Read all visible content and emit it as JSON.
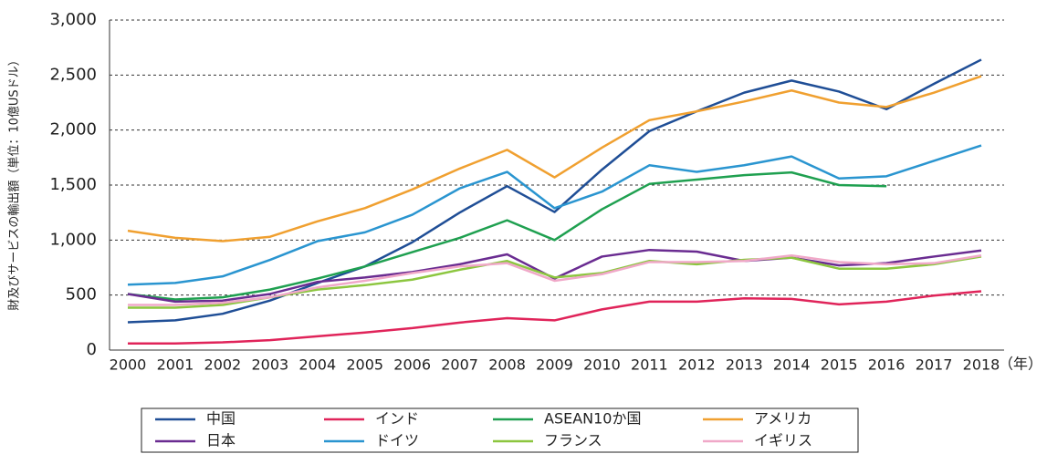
{
  "chart_data": {
    "type": "line",
    "ylabel": "財及びサービスの輸出額（単位：10億USドル）",
    "xlabel": "（年）",
    "categories": [
      "2000",
      "2001",
      "2002",
      "2003",
      "2004",
      "2005",
      "2006",
      "2007",
      "2008",
      "2009",
      "2010",
      "2011",
      "2012",
      "2013",
      "2014",
      "2015",
      "2016",
      "2017",
      "2018"
    ],
    "ylim": [
      0,
      3000
    ],
    "yticks": [
      0,
      500,
      {
        "value": 1000,
        "label": "1,000"
      },
      {
        "value": 1500,
        "label": "1,500"
      },
      {
        "value": 2000,
        "label": "2,000"
      },
      {
        "value": 2500,
        "label": "2,500"
      },
      {
        "value": 3000,
        "label": "3,000"
      }
    ],
    "grid": true,
    "legend": "bottom",
    "series": [
      {
        "name": "中国",
        "color": "#1f4e96",
        "values": [
          253,
          270,
          330,
          450,
          610,
          760,
          980,
          1250,
          1490,
          1255,
          1640,
          1990,
          2170,
          2340,
          2450,
          2350,
          2190,
          2420,
          2640
        ]
      },
      {
        "name": "インド",
        "color": "#e0245a",
        "values": [
          60,
          60,
          70,
          90,
          125,
          160,
          200,
          250,
          290,
          270,
          370,
          440,
          440,
          470,
          465,
          415,
          440,
          495,
          535
        ]
      },
      {
        "name": "ASEAN10か国",
        "color": "#1fa050",
        "values": [
          510,
          460,
          480,
          550,
          650,
          760,
          890,
          1020,
          1180,
          1000,
          1280,
          1510,
          1550,
          1590,
          1615,
          1500,
          1490,
          null,
          null
        ]
      },
      {
        "name": "アメリカ",
        "color": "#f0a030",
        "values": [
          1085,
          1020,
          990,
          1030,
          1170,
          1290,
          1460,
          1650,
          1820,
          1570,
          1840,
          2090,
          2170,
          2260,
          2360,
          2250,
          2210,
          2340,
          2490
        ]
      },
      {
        "name": "日本",
        "color": "#6a2c91",
        "values": [
          510,
          440,
          450,
          510,
          620,
          660,
          710,
          780,
          870,
          650,
          850,
          910,
          895,
          810,
          840,
          770,
          790,
          850,
          905
        ]
      },
      {
        "name": "ドイツ",
        "color": "#2a95d0",
        "values": [
          595,
          610,
          670,
          820,
          990,
          1070,
          1230,
          1470,
          1620,
          1290,
          1440,
          1680,
          1620,
          1680,
          1760,
          1560,
          1580,
          1720,
          1860
        ]
      },
      {
        "name": "フランス",
        "color": "#8cc63f",
        "values": [
          385,
          385,
          410,
          480,
          550,
          590,
          640,
          730,
          810,
          660,
          700,
          810,
          780,
          820,
          840,
          740,
          740,
          780,
          850
        ]
      },
      {
        "name": "イギリス",
        "color": "#f0a8c8",
        "values": [
          410,
          410,
          430,
          480,
          570,
          630,
          700,
          760,
          790,
          630,
          690,
          800,
          800,
          810,
          860,
          800,
          780,
          790,
          860
        ]
      }
    ]
  }
}
